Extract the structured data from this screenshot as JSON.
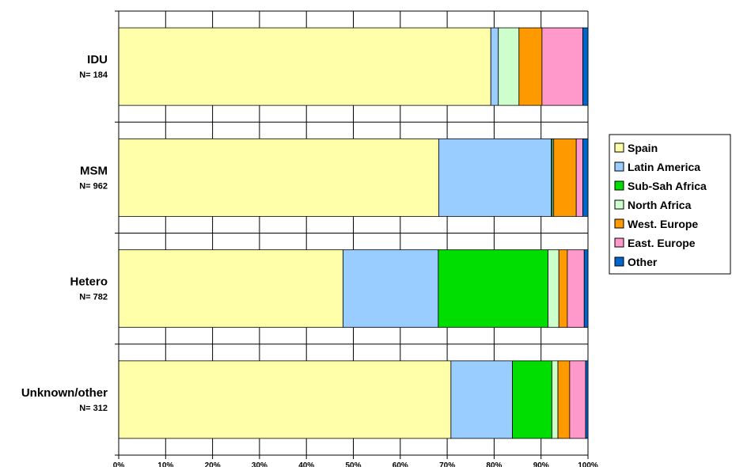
{
  "chart_data": {
    "type": "bar",
    "orientation": "horizontal",
    "stacked": true,
    "percent_axis": true,
    "xlim": [
      0,
      100
    ],
    "x_ticks": [
      "0%",
      "10%",
      "20%",
      "30%",
      "40%",
      "50%",
      "60%",
      "70%",
      "80%",
      "90%",
      "100%"
    ],
    "grid": true,
    "legend_position": "right",
    "categories": [
      {
        "name": "IDU",
        "n": "N= 184"
      },
      {
        "name": "MSM",
        "n": "N= 962"
      },
      {
        "name": "Hetero",
        "n": "N= 782"
      },
      {
        "name": "Unknown/other",
        "n": "N= 312"
      }
    ],
    "series": [
      {
        "name": "Spain",
        "color": "#FFFFAA",
        "values": [
          79.3,
          68.2,
          47.8,
          70.8
        ]
      },
      {
        "name": "Latin America",
        "color": "#99CCFF",
        "values": [
          1.6,
          24.0,
          20.3,
          13.1
        ]
      },
      {
        "name": "Sub-Sah Africa",
        "color": "#00DD00",
        "values": [
          0.0,
          0.2,
          23.4,
          8.4
        ]
      },
      {
        "name": "North Africa",
        "color": "#CCFFCC",
        "values": [
          4.4,
          0.3,
          2.3,
          1.3
        ]
      },
      {
        "name": "West. Europe",
        "color": "#FF9900",
        "values": [
          4.9,
          4.8,
          1.8,
          2.5
        ]
      },
      {
        "name": "East. Europe",
        "color": "#FF99CC",
        "values": [
          8.7,
          1.4,
          3.6,
          3.4
        ]
      },
      {
        "name": "Other",
        "color": "#0066CC",
        "values": [
          1.1,
          1.1,
          0.8,
          0.5
        ]
      }
    ]
  }
}
